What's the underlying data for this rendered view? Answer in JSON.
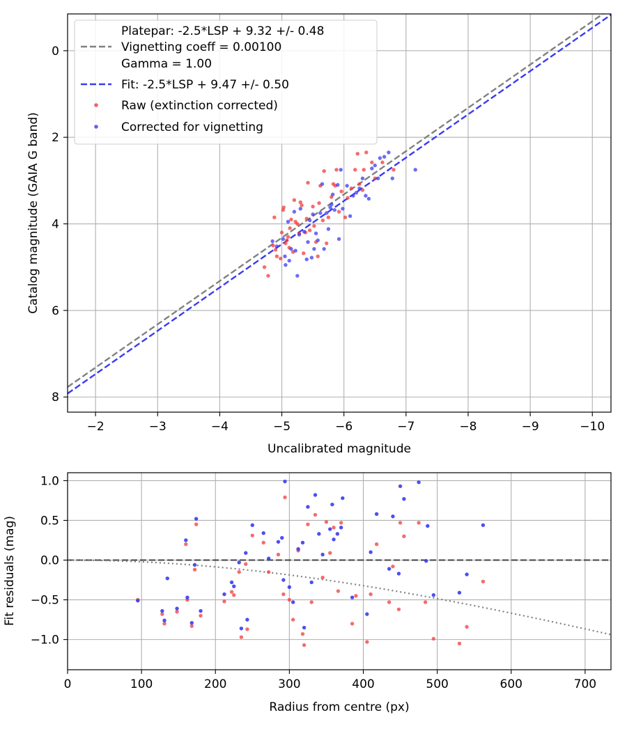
{
  "chart_data": [
    {
      "type": "scatter",
      "title": "",
      "xlabel": "Uncalibrated magnitude",
      "ylabel": "Catalog magnitude (GAIA G band)",
      "xlim": [
        -1.55,
        -10.3
      ],
      "ylim": [
        8.35,
        -0.85
      ],
      "x_inverted": true,
      "y_inverted": true,
      "grid": true,
      "legend_position": "top-left",
      "xticks": [
        -2,
        -3,
        -4,
        -5,
        -6,
        -7,
        -8,
        -9,
        -10
      ],
      "xtick_labels": [
        "−2",
        "−3",
        "−4",
        "−5",
        "−6",
        "−7",
        "−8",
        "−9",
        "−10"
      ],
      "yticks": [
        0,
        2,
        4,
        6,
        8
      ],
      "ytick_labels": [
        "0",
        "2",
        "4",
        "6",
        "8"
      ],
      "legend": [
        {
          "kind": "none",
          "label": "Platepar: -2.5*LSP + 9.32 +/- 0.48"
        },
        {
          "kind": "dash",
          "color": "#808080",
          "label": "Vignetting coeff = 0.00100"
        },
        {
          "kind": "none",
          "label": "Gamma = 1.00"
        },
        {
          "kind": "dash",
          "color": "#3a3af0",
          "label": "Fit: -2.5*LSP + 9.47 +/- 0.50"
        },
        {
          "kind": "dot",
          "color": "#f03c3c",
          "label": "Raw (extinction corrected)"
        },
        {
          "kind": "dot",
          "color": "#3c3cf0",
          "label": "Corrected for vignetting"
        }
      ],
      "lines": [
        {
          "label": "Platepar",
          "color": "#808080",
          "dash": true,
          "slope": 1.0,
          "intercept": 9.32,
          "x_range": [
            -1.55,
            -10.3
          ]
        },
        {
          "label": "Fit",
          "color": "#3a3af0",
          "dash": true,
          "slope": 1.0,
          "intercept": 9.47,
          "x_range": [
            -1.55,
            -10.3
          ]
        }
      ],
      "series": [
        {
          "name": "Raw (extinction corrected)",
          "color": "#f03c3c",
          "points": [
            [
              -4.72,
              5.0
            ],
            [
              -4.78,
              5.2
            ],
            [
              -4.86,
              4.5
            ],
            [
              -4.88,
              3.85
            ],
            [
              -4.9,
              4.6
            ],
            [
              -4.92,
              4.75
            ],
            [
              -4.98,
              4.8
            ],
            [
              -5.0,
              4.2
            ],
            [
              -5.02,
              3.68
            ],
            [
              -5.03,
              3.62
            ],
            [
              -5.06,
              4.45
            ],
            [
              -5.08,
              4.38
            ],
            [
              -5.1,
              4.3
            ],
            [
              -5.12,
              4.55
            ],
            [
              -5.13,
              4.1
            ],
            [
              -5.15,
              3.9
            ],
            [
              -5.18,
              4.65
            ],
            [
              -5.2,
              3.45
            ],
            [
              -5.22,
              3.95
            ],
            [
              -5.25,
              4.0
            ],
            [
              -5.28,
              4.22
            ],
            [
              -5.3,
              3.5
            ],
            [
              -5.32,
              3.57
            ],
            [
              -5.35,
              4.68
            ],
            [
              -5.38,
              4.2
            ],
            [
              -5.4,
              3.88
            ],
            [
              -5.42,
              3.05
            ],
            [
              -5.45,
              4.15
            ],
            [
              -5.5,
              3.6
            ],
            [
              -5.52,
              4.05
            ],
            [
              -5.55,
              4.42
            ],
            [
              -5.58,
              4.75
            ],
            [
              -5.6,
              3.52
            ],
            [
              -5.62,
              3.12
            ],
            [
              -5.66,
              3.92
            ],
            [
              -5.68,
              2.78
            ],
            [
              -5.72,
              4.45
            ],
            [
              -5.75,
              3.85
            ],
            [
              -5.8,
              3.38
            ],
            [
              -5.83,
              3.08
            ],
            [
              -5.86,
              3.12
            ],
            [
              -5.88,
              2.75
            ],
            [
              -5.92,
              3.72
            ],
            [
              -5.96,
              3.25
            ],
            [
              -6.02,
              3.85
            ],
            [
              -6.06,
              3.4
            ],
            [
              -6.12,
              3.18
            ],
            [
              -6.18,
              2.75
            ],
            [
              -6.22,
              2.38
            ],
            [
              -6.25,
              3.08
            ],
            [
              -6.3,
              3.22
            ],
            [
              -6.32,
              2.75
            ],
            [
              -6.36,
              2.35
            ],
            [
              -6.45,
              2.58
            ],
            [
              -6.5,
              2.95
            ],
            [
              -6.62,
              2.58
            ],
            [
              -6.8,
              2.75
            ]
          ]
        },
        {
          "name": "Corrected for vignetting",
          "color": "#3c3cf0",
          "points": [
            [
              -4.85,
              4.4
            ],
            [
              -4.92,
              4.52
            ],
            [
              -5.02,
              4.35
            ],
            [
              -5.05,
              4.75
            ],
            [
              -5.06,
              4.95
            ],
            [
              -5.1,
              3.95
            ],
            [
              -5.12,
              4.85
            ],
            [
              -5.15,
              4.58
            ],
            [
              -5.2,
              3.72
            ],
            [
              -5.22,
              4.62
            ],
            [
              -5.25,
              5.2
            ],
            [
              -5.28,
              4.25
            ],
            [
              -5.3,
              3.65
            ],
            [
              -5.36,
              4.18
            ],
            [
              -5.4,
              4.82
            ],
            [
              -5.42,
              4.42
            ],
            [
              -5.45,
              3.92
            ],
            [
              -5.48,
              4.78
            ],
            [
              -5.5,
              3.78
            ],
            [
              -5.52,
              4.58
            ],
            [
              -5.55,
              4.22
            ],
            [
              -5.58,
              4.38
            ],
            [
              -5.62,
              3.75
            ],
            [
              -5.65,
              3.08
            ],
            [
              -5.68,
              4.58
            ],
            [
              -5.72,
              3.75
            ],
            [
              -5.75,
              4.12
            ],
            [
              -5.78,
              3.62
            ],
            [
              -5.8,
              3.55
            ],
            [
              -5.82,
              3.32
            ],
            [
              -5.85,
              3.68
            ],
            [
              -5.9,
              3.1
            ],
            [
              -5.92,
              4.35
            ],
            [
              -5.95,
              2.75
            ],
            [
              -5.98,
              3.65
            ],
            [
              -6.05,
              3.12
            ],
            [
              -6.1,
              3.82
            ],
            [
              -6.15,
              3.35
            ],
            [
              -6.2,
              3.28
            ],
            [
              -6.25,
              3.18
            ],
            [
              -6.3,
              2.95
            ],
            [
              -6.35,
              3.35
            ],
            [
              -6.4,
              3.42
            ],
            [
              -6.45,
              2.72
            ],
            [
              -6.5,
              2.65
            ],
            [
              -6.55,
              2.95
            ],
            [
              -6.58,
              2.48
            ],
            [
              -6.65,
              2.45
            ],
            [
              -6.72,
              2.35
            ],
            [
              -6.78,
              2.95
            ],
            [
              -7.15,
              2.75
            ]
          ]
        }
      ]
    },
    {
      "type": "scatter",
      "title": "",
      "xlabel": "Radius from centre (px)",
      "ylabel": "Fit residuals (mag)",
      "xlim": [
        0,
        735
      ],
      "ylim": [
        -1.38,
        1.1
      ],
      "grid": true,
      "xticks": [
        0,
        100,
        200,
        300,
        400,
        500,
        600,
        700
      ],
      "xtick_labels": [
        "0",
        "100",
        "200",
        "300",
        "400",
        "500",
        "600",
        "700"
      ],
      "yticks": [
        1.0,
        0.5,
        0.0,
        -0.5,
        -1.0
      ],
      "ytick_labels": [
        "1.0",
        "0.5",
        "0.0",
        "−0.5",
        "−1.0"
      ],
      "lines": [
        {
          "label": "zero",
          "color": "#000000",
          "style": "dashed",
          "points": [
            [
              0,
              0
            ],
            [
              735,
              0
            ]
          ]
        },
        {
          "label": "vignetting",
          "color": "#808080",
          "style": "dotted",
          "vignetting_coeff": 0.001,
          "x_range": [
            0,
            735
          ]
        }
      ],
      "series": [
        {
          "name": "Raw (extinction corrected)",
          "color": "#f03c3c",
          "points": [
            [
              95,
              -0.5
            ],
            [
              128,
              -0.68
            ],
            [
              131,
              -0.8
            ],
            [
              148,
              -0.65
            ],
            [
              160,
              0.2
            ],
            [
              162,
              -0.5
            ],
            [
              168,
              -0.83
            ],
            [
              172,
              -0.12
            ],
            [
              174,
              0.45
            ],
            [
              180,
              -0.7
            ],
            [
              212,
              -0.52
            ],
            [
              222,
              -0.4
            ],
            [
              225,
              -0.44
            ],
            [
              232,
              -0.15
            ],
            [
              235,
              -0.97
            ],
            [
              241,
              -0.05
            ],
            [
              243,
              -0.87
            ],
            [
              250,
              0.31
            ],
            [
              265,
              0.22
            ],
            [
              272,
              -0.15
            ],
            [
              285,
              0.07
            ],
            [
              292,
              -0.43
            ],
            [
              294,
              0.79
            ],
            [
              300,
              -0.5
            ],
            [
              305,
              -0.75
            ],
            [
              312,
              0.12
            ],
            [
              318,
              -0.93
            ],
            [
              320,
              -1.07
            ],
            [
              325,
              0.45
            ],
            [
              330,
              -0.53
            ],
            [
              335,
              0.57
            ],
            [
              345,
              -0.22
            ],
            [
              350,
              0.48
            ],
            [
              355,
              0.09
            ],
            [
              360,
              0.41
            ],
            [
              366,
              -0.39
            ],
            [
              370,
              0.47
            ],
            [
              385,
              -0.8
            ],
            [
              390,
              -0.45
            ],
            [
              405,
              -1.03
            ],
            [
              410,
              -0.43
            ],
            [
              418,
              0.2
            ],
            [
              435,
              -0.53
            ],
            [
              440,
              -0.08
            ],
            [
              448,
              -0.62
            ],
            [
              450,
              0.47
            ],
            [
              455,
              0.3
            ],
            [
              475,
              0.47
            ],
            [
              484,
              -0.53
            ],
            [
              495,
              -0.99
            ],
            [
              530,
              -1.05
            ],
            [
              540,
              -0.84
            ],
            [
              562,
              -0.27
            ]
          ]
        },
        {
          "name": "Corrected for vignetting",
          "color": "#3c3cf0",
          "points": [
            [
              95,
              -0.51
            ],
            [
              128,
              -0.64
            ],
            [
              131,
              -0.76
            ],
            [
              135,
              -0.23
            ],
            [
              148,
              -0.61
            ],
            [
              160,
              0.25
            ],
            [
              162,
              -0.47
            ],
            [
              168,
              -0.79
            ],
            [
              172,
              -0.06
            ],
            [
              174,
              0.52
            ],
            [
              180,
              -0.64
            ],
            [
              212,
              -0.43
            ],
            [
              222,
              -0.28
            ],
            [
              225,
              -0.33
            ],
            [
              232,
              -0.03
            ],
            [
              235,
              -0.86
            ],
            [
              241,
              0.09
            ],
            [
              243,
              -0.75
            ],
            [
              250,
              0.44
            ],
            [
              265,
              0.34
            ],
            [
              272,
              0.02
            ],
            [
              285,
              0.23
            ],
            [
              290,
              0.28
            ],
            [
              292,
              -0.25
            ],
            [
              294,
              0.99
            ],
            [
              300,
              -0.34
            ],
            [
              305,
              -0.53
            ],
            [
              312,
              0.14
            ],
            [
              318,
              0.22
            ],
            [
              320,
              -0.85
            ],
            [
              325,
              0.67
            ],
            [
              330,
              -0.28
            ],
            [
              335,
              0.82
            ],
            [
              340,
              0.33
            ],
            [
              345,
              0.07
            ],
            [
              355,
              0.39
            ],
            [
              358,
              0.7
            ],
            [
              360,
              0.26
            ],
            [
              365,
              0.33
            ],
            [
              370,
              0.41
            ],
            [
              372,
              0.78
            ],
            [
              385,
              -0.47
            ],
            [
              405,
              -0.68
            ],
            [
              410,
              0.1
            ],
            [
              418,
              0.58
            ],
            [
              435,
              -0.11
            ],
            [
              440,
              0.55
            ],
            [
              448,
              -0.17
            ],
            [
              450,
              0.93
            ],
            [
              455,
              0.77
            ],
            [
              475,
              0.98
            ],
            [
              485,
              -0.01
            ],
            [
              487,
              0.43
            ],
            [
              495,
              -0.44
            ],
            [
              530,
              -0.41
            ],
            [
              540,
              -0.18
            ],
            [
              562,
              0.44
            ]
          ]
        }
      ]
    }
  ]
}
